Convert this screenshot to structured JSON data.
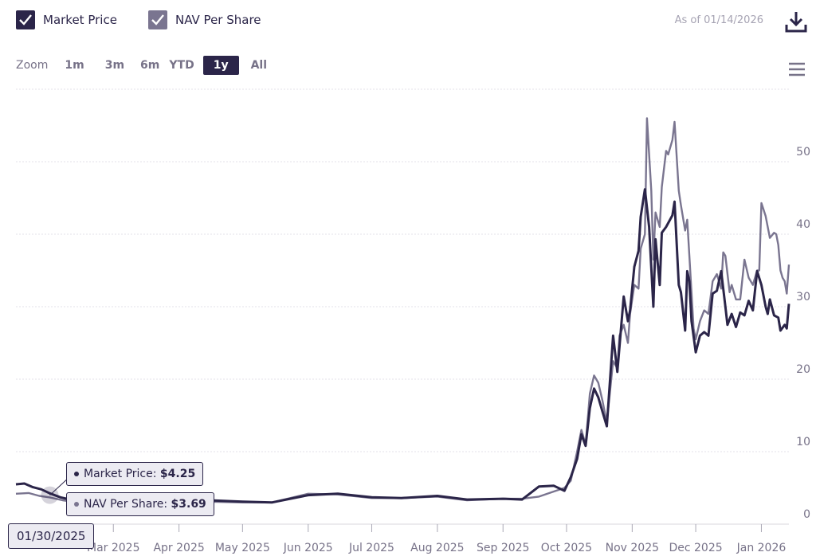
{
  "legend": [
    {
      "label": "Market Price",
      "color": "#2b2549",
      "checked": true
    },
    {
      "label": "NAV Per Share",
      "color": "#7a7590",
      "checked": true
    }
  ],
  "as_of": "As of 01/14/2026",
  "icons": {
    "download": "download-icon",
    "menu": "hamburger-menu-icon"
  },
  "zoom": {
    "label": "Zoom",
    "options": [
      "1m",
      "3m",
      "6m",
      "YTD",
      "1y",
      "All"
    ],
    "selected": "1y"
  },
  "tooltip": {
    "date": "01/30/2025",
    "market_label": "Market Price:",
    "market_value": "$4.25",
    "nav_label": "NAV Per Share:",
    "nav_value": "$3.69"
  },
  "chart_data": {
    "type": "line",
    "x_range": [
      "2025-01-14",
      "2026-01-14"
    ],
    "ylim": [
      0,
      60
    ],
    "y_ticks": [
      "0",
      "10",
      "20",
      "30",
      "40",
      "50"
    ],
    "y_tick_values": [
      0,
      10,
      20,
      30,
      40,
      50
    ],
    "y_axis_position": "right",
    "grid": true,
    "x_ticks": [
      {
        "label": "Mar 2025",
        "date": "2025-03-01"
      },
      {
        "label": "Apr 2025",
        "date": "2025-04-01"
      },
      {
        "label": "May 2025",
        "date": "2025-05-01"
      },
      {
        "label": "Jun 2025",
        "date": "2025-06-01"
      },
      {
        "label": "Jul 2025",
        "date": "2025-07-01"
      },
      {
        "label": "Aug 2025",
        "date": "2025-08-01"
      },
      {
        "label": "Sep 2025",
        "date": "2025-09-01"
      },
      {
        "label": "Oct 2025",
        "date": "2025-10-01"
      },
      {
        "label": "Nov 2025",
        "date": "2025-11-01"
      },
      {
        "label": "Dec 2025",
        "date": "2025-12-01"
      },
      {
        "label": "Jan 2026",
        "date": "2026-01-01"
      }
    ],
    "series": [
      {
        "name": "Market Price",
        "color": "#2b2549",
        "points": [
          [
            "2025-01-14",
            5.5
          ],
          [
            "2025-01-18",
            5.6
          ],
          [
            "2025-01-22",
            5.1
          ],
          [
            "2025-01-26",
            4.8
          ],
          [
            "2025-01-30",
            4.25
          ],
          [
            "2025-02-04",
            3.7
          ],
          [
            "2025-02-10",
            3.3
          ],
          [
            "2025-02-18",
            3.0
          ],
          [
            "2025-03-01",
            2.9
          ],
          [
            "2025-03-15",
            2.8
          ],
          [
            "2025-04-01",
            2.9
          ],
          [
            "2025-04-15",
            3.3
          ],
          [
            "2025-05-01",
            3.1
          ],
          [
            "2025-05-15",
            3.0
          ],
          [
            "2025-06-01",
            4.0
          ],
          [
            "2025-06-15",
            4.2
          ],
          [
            "2025-07-01",
            3.7
          ],
          [
            "2025-07-15",
            3.6
          ],
          [
            "2025-08-01",
            3.9
          ],
          [
            "2025-08-15",
            3.4
          ],
          [
            "2025-09-01",
            3.5
          ],
          [
            "2025-09-10",
            3.4
          ],
          [
            "2025-09-18",
            5.2
          ],
          [
            "2025-09-25",
            5.3
          ],
          [
            "2025-09-30",
            4.6
          ],
          [
            "2025-10-03",
            6.5
          ],
          [
            "2025-10-06",
            9.0
          ],
          [
            "2025-10-08",
            12.4
          ],
          [
            "2025-10-10",
            10.8
          ],
          [
            "2025-10-12",
            16.0
          ],
          [
            "2025-10-14",
            18.7
          ],
          [
            "2025-10-16",
            17.5
          ],
          [
            "2025-10-18",
            15.5
          ],
          [
            "2025-10-20",
            13.5
          ],
          [
            "2025-10-23",
            26.0
          ],
          [
            "2025-10-25",
            21.0
          ],
          [
            "2025-10-26",
            24.5
          ],
          [
            "2025-10-28",
            31.4
          ],
          [
            "2025-10-30",
            28.0
          ],
          [
            "2025-10-31",
            29.5
          ],
          [
            "2025-11-02",
            35.5
          ],
          [
            "2025-11-04",
            37.7
          ],
          [
            "2025-11-05",
            42.4
          ],
          [
            "2025-11-07",
            46.2
          ],
          [
            "2025-11-09",
            41.0
          ],
          [
            "2025-11-11",
            30.0
          ],
          [
            "2025-11-12",
            39.3
          ],
          [
            "2025-11-14",
            33.0
          ],
          [
            "2025-11-15",
            40.2
          ],
          [
            "2025-11-17",
            41.0
          ],
          [
            "2025-11-20",
            42.6
          ],
          [
            "2025-11-21",
            44.5
          ],
          [
            "2025-11-23",
            33.0
          ],
          [
            "2025-11-24",
            32.0
          ],
          [
            "2025-11-26",
            26.7
          ],
          [
            "2025-11-27",
            34.9
          ],
          [
            "2025-11-28",
            33.5
          ],
          [
            "2025-11-29",
            28.0
          ],
          [
            "2025-12-01",
            23.7
          ],
          [
            "2025-12-03",
            26.0
          ],
          [
            "2025-12-05",
            26.5
          ],
          [
            "2025-12-07",
            26.0
          ],
          [
            "2025-12-09",
            31.8
          ],
          [
            "2025-12-11",
            32.2
          ],
          [
            "2025-12-13",
            34.9
          ],
          [
            "2025-12-15",
            30.0
          ],
          [
            "2025-12-16",
            27.5
          ],
          [
            "2025-12-18",
            29.0
          ],
          [
            "2025-12-20",
            27.2
          ],
          [
            "2025-12-22",
            29.2
          ],
          [
            "2025-12-24",
            28.8
          ],
          [
            "2025-12-26",
            30.8
          ],
          [
            "2025-12-28",
            29.5
          ],
          [
            "2025-12-30",
            34.9
          ],
          [
            "2026-01-01",
            33.0
          ],
          [
            "2026-01-03",
            30.0
          ],
          [
            "2026-01-04",
            29.0
          ],
          [
            "2026-01-05",
            31.0
          ],
          [
            "2026-01-07",
            28.8
          ],
          [
            "2026-01-09",
            28.5
          ],
          [
            "2026-01-10",
            26.7
          ],
          [
            "2026-01-12",
            27.5
          ],
          [
            "2026-01-13",
            27.0
          ],
          [
            "2026-01-14",
            30.4
          ]
        ]
      },
      {
        "name": "NAV Per Share",
        "color": "#7a7590",
        "points": [
          [
            "2025-01-14",
            4.2
          ],
          [
            "2025-01-20",
            4.3
          ],
          [
            "2025-01-25",
            3.9
          ],
          [
            "2025-01-30",
            3.69
          ],
          [
            "2025-02-05",
            3.3
          ],
          [
            "2025-02-12",
            3.0
          ],
          [
            "2025-02-20",
            2.8
          ],
          [
            "2025-03-01",
            2.8
          ],
          [
            "2025-04-01",
            2.9
          ],
          [
            "2025-04-15",
            3.1
          ],
          [
            "2025-05-01",
            3.0
          ],
          [
            "2025-05-15",
            3.0
          ],
          [
            "2025-06-01",
            4.2
          ],
          [
            "2025-06-15",
            4.1
          ],
          [
            "2025-07-01",
            3.6
          ],
          [
            "2025-07-15",
            3.6
          ],
          [
            "2025-08-01",
            3.8
          ],
          [
            "2025-08-15",
            3.3
          ],
          [
            "2025-09-01",
            3.5
          ],
          [
            "2025-09-10",
            3.5
          ],
          [
            "2025-09-18",
            3.8
          ],
          [
            "2025-09-25",
            4.5
          ],
          [
            "2025-09-30",
            5.0
          ],
          [
            "2025-10-03",
            6.0
          ],
          [
            "2025-10-06",
            10.0
          ],
          [
            "2025-10-08",
            13.0
          ],
          [
            "2025-10-10",
            11.0
          ],
          [
            "2025-10-12",
            18.0
          ],
          [
            "2025-10-14",
            20.5
          ],
          [
            "2025-10-16",
            19.5
          ],
          [
            "2025-10-18",
            17.0
          ],
          [
            "2025-10-20",
            14.0
          ],
          [
            "2025-10-23",
            22.5
          ],
          [
            "2025-10-25",
            21.5
          ],
          [
            "2025-10-26",
            26.0
          ],
          [
            "2025-10-28",
            27.5
          ],
          [
            "2025-10-30",
            25.0
          ],
          [
            "2025-10-31",
            29.0
          ],
          [
            "2025-11-02",
            33.0
          ],
          [
            "2025-11-04",
            32.5
          ],
          [
            "2025-11-05",
            38.0
          ],
          [
            "2025-11-07",
            40.0
          ],
          [
            "2025-11-08",
            56.0
          ],
          [
            "2025-11-10",
            46.0
          ],
          [
            "2025-11-11",
            36.5
          ],
          [
            "2025-11-12",
            43.0
          ],
          [
            "2025-11-14",
            41.0
          ],
          [
            "2025-11-15",
            46.5
          ],
          [
            "2025-11-17",
            51.5
          ],
          [
            "2025-11-18",
            51.0
          ],
          [
            "2025-11-20",
            53.0
          ],
          [
            "2025-11-21",
            55.5
          ],
          [
            "2025-11-23",
            46.0
          ],
          [
            "2025-11-24",
            44.0
          ],
          [
            "2025-11-26",
            40.5
          ],
          [
            "2025-11-27",
            42.0
          ],
          [
            "2025-11-28",
            37.0
          ],
          [
            "2025-11-30",
            27.0
          ],
          [
            "2025-12-01",
            25.5
          ],
          [
            "2025-12-03",
            28.0
          ],
          [
            "2025-12-05",
            29.5
          ],
          [
            "2025-12-07",
            29.0
          ],
          [
            "2025-12-09",
            33.5
          ],
          [
            "2025-12-11",
            34.5
          ],
          [
            "2025-12-13",
            32.5
          ],
          [
            "2025-12-14",
            37.5
          ],
          [
            "2025-12-15",
            37.0
          ],
          [
            "2025-12-17",
            32.0
          ],
          [
            "2025-12-18",
            33.0
          ],
          [
            "2025-12-20",
            31.0
          ],
          [
            "2025-12-22",
            31.0
          ],
          [
            "2025-12-24",
            36.5
          ],
          [
            "2025-12-26",
            34.0
          ],
          [
            "2025-12-28",
            33.0
          ],
          [
            "2025-12-30",
            35.0
          ],
          [
            "2025-12-31",
            35.0
          ],
          [
            "2026-01-01",
            44.3
          ],
          [
            "2026-01-03",
            42.5
          ],
          [
            "2026-01-05",
            39.5
          ],
          [
            "2026-01-07",
            40.2
          ],
          [
            "2026-01-08",
            40.0
          ],
          [
            "2026-01-09",
            38.5
          ],
          [
            "2026-01-10",
            35.0
          ],
          [
            "2026-01-11",
            34.0
          ],
          [
            "2026-01-12",
            33.5
          ],
          [
            "2026-01-13",
            31.8
          ],
          [
            "2026-01-14",
            35.8
          ]
        ]
      }
    ]
  }
}
